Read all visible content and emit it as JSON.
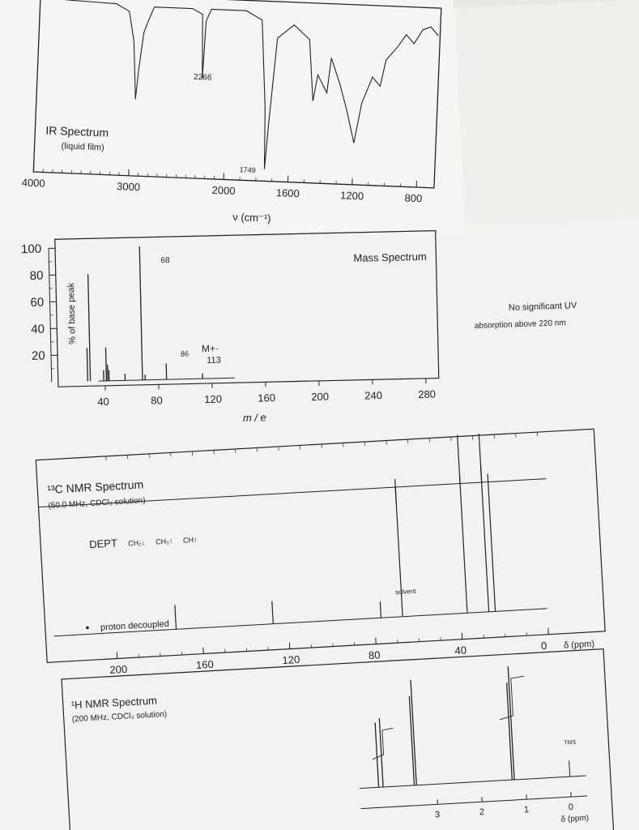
{
  "colors": {
    "paper": "#f4f4f2",
    "ink": "#222222",
    "background": "#e9e8e4"
  },
  "chart_data": [
    {
      "type": "line",
      "title": "IR Spectrum",
      "subtitle": "(liquid film)",
      "xlabel": "ν (cm⁻¹)",
      "x_ticks": [
        "4000",
        "3000",
        "2000",
        "1600",
        "1200",
        "800"
      ],
      "peak_labels": [
        "2266",
        "1749"
      ],
      "points": [
        [
          4000,
          98
        ],
        [
          3700,
          97
        ],
        [
          3200,
          96
        ],
        [
          3060,
          92
        ],
        [
          3000,
          75
        ],
        [
          2960,
          42
        ],
        [
          2940,
          58
        ],
        [
          2900,
          80
        ],
        [
          2870,
          85
        ],
        [
          2800,
          95
        ],
        [
          2400,
          95
        ],
        [
          2290,
          92
        ],
        [
          2266,
          55
        ],
        [
          2250,
          88
        ],
        [
          2200,
          95
        ],
        [
          1900,
          95
        ],
        [
          1800,
          90
        ],
        [
          1760,
          40
        ],
        [
          1749,
          5
        ],
        [
          1735,
          30
        ],
        [
          1700,
          80
        ],
        [
          1600,
          88
        ],
        [
          1500,
          80
        ],
        [
          1465,
          45
        ],
        [
          1440,
          60
        ],
        [
          1380,
          50
        ],
        [
          1360,
          70
        ],
        [
          1300,
          55
        ],
        [
          1250,
          40
        ],
        [
          1200,
          22
        ],
        [
          1160,
          45
        ],
        [
          1100,
          60
        ],
        [
          1050,
          55
        ],
        [
          1020,
          70
        ],
        [
          950,
          78
        ],
        [
          900,
          85
        ],
        [
          850,
          80
        ],
        [
          800,
          88
        ],
        [
          750,
          90
        ],
        [
          700,
          85
        ]
      ]
    },
    {
      "type": "bar",
      "title": "Mass Spectrum",
      "xlabel": "m / e",
      "ylabel": "% of base peak",
      "x_ticks": [
        "40",
        "80",
        "120",
        "160",
        "200",
        "240",
        "280"
      ],
      "y_ticks": [
        "100",
        "80",
        "60",
        "40",
        "20"
      ],
      "peak_labels": [
        "68",
        "86",
        "M+·",
        "113"
      ],
      "peaks": [
        [
          27,
          25
        ],
        [
          29,
          80
        ],
        [
          39,
          8
        ],
        [
          41,
          25
        ],
        [
          42,
          12
        ],
        [
          43,
          8
        ],
        [
          55,
          5
        ],
        [
          68,
          100
        ],
        [
          70,
          4
        ],
        [
          86,
          12
        ],
        [
          113,
          4
        ]
      ]
    },
    {
      "type": "line",
      "title": "¹³C NMR Spectrum",
      "subtitle": "(50.0 MHz, CDCl₃ solution)",
      "dept_label": "DEPT",
      "dept_items": [
        "CH₂↓",
        "CH₃↑",
        "CH↑"
      ],
      "proton_decoupled_label": "proton decoupled",
      "solvent_label": "solvent",
      "x_ticks": [
        "200",
        "160",
        "120",
        "80",
        "40",
        "0",
        "δ (ppm)"
      ],
      "peaks_ppm": [
        172,
        127,
        77,
        67,
        37,
        27,
        24
      ]
    },
    {
      "type": "line",
      "title": "¹H NMR Spectrum",
      "subtitle": "(200 MHz, CDCl₃ solution)",
      "tms_label": "TMS",
      "x_ticks": [
        "3",
        "2",
        "1",
        "0",
        "δ (ppm)"
      ],
      "peaks_ppm": [
        4.3,
        4.2,
        3.5,
        3.45,
        1.3,
        1.25
      ]
    }
  ],
  "uv_note": [
    "No significant UV",
    "absorption above 220 nm"
  ]
}
